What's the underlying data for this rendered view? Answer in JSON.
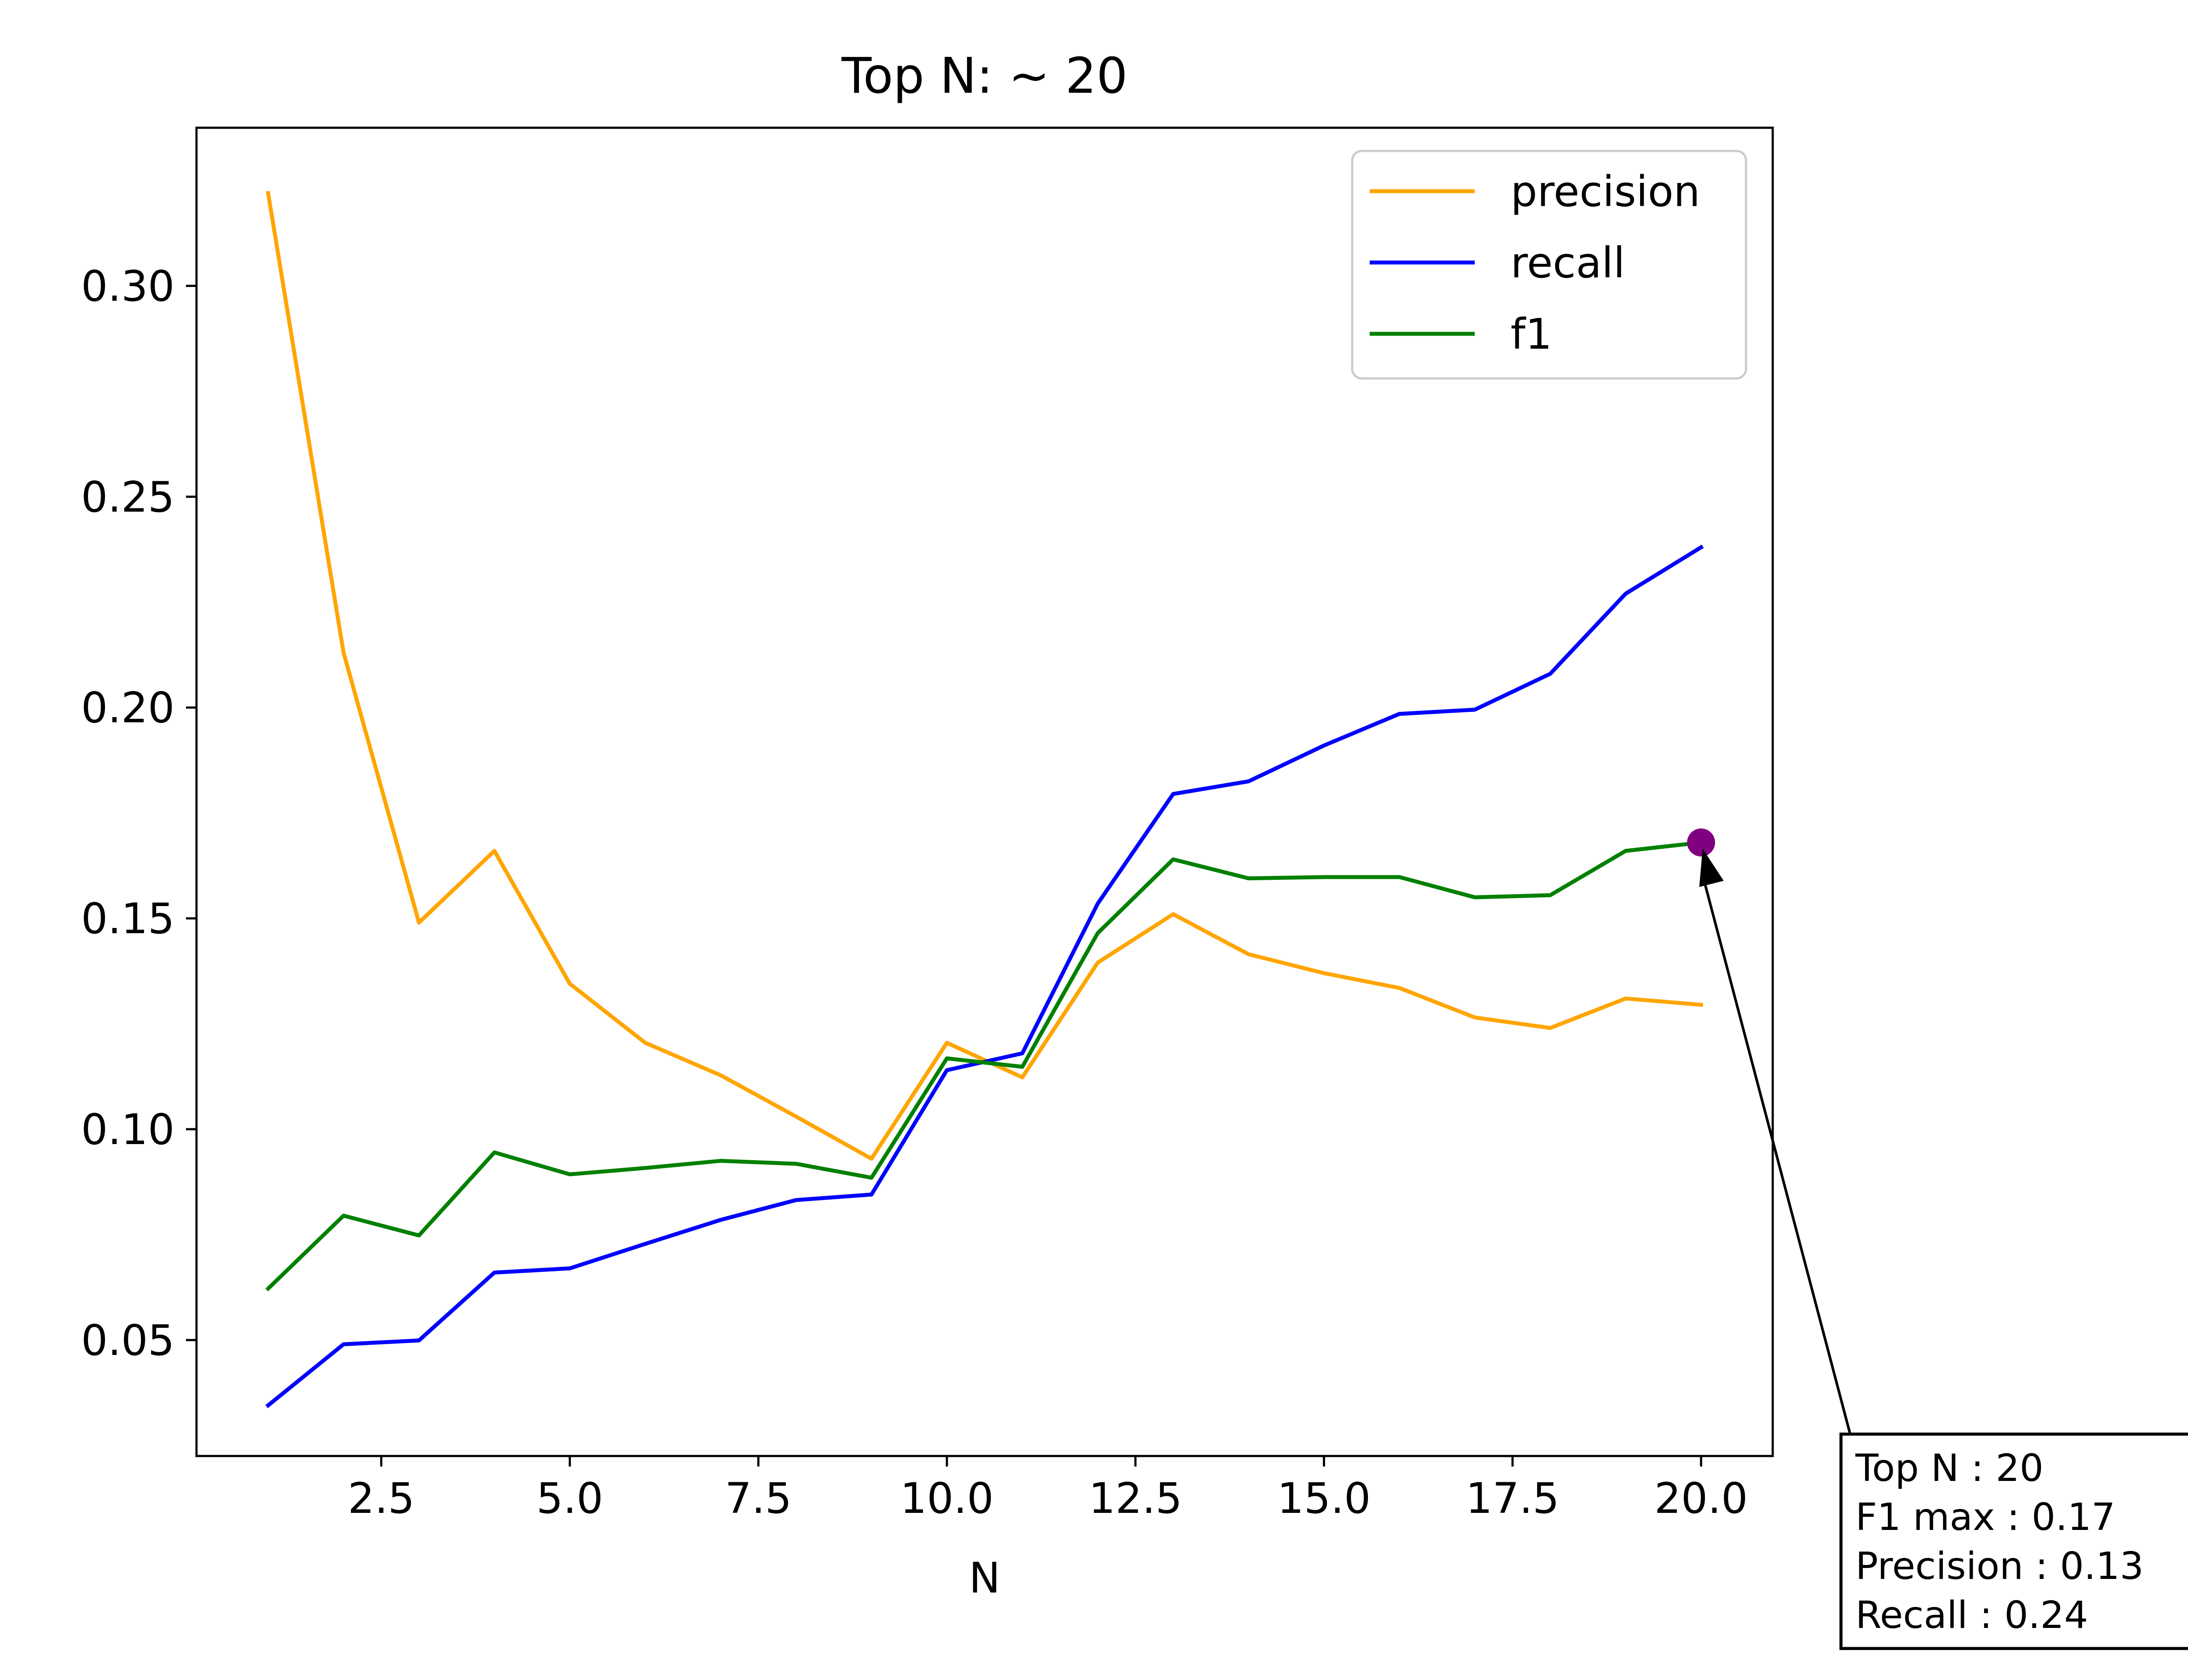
{
  "chart_data": {
    "type": "line",
    "title": "Top N: ~ 20",
    "xlabel": "N",
    "ylabel": "",
    "xlim": [
      0.05,
      20.95
    ],
    "ylim": [
      0.0225,
      0.3375
    ],
    "xticks": [
      2.5,
      5.0,
      7.5,
      10.0,
      12.5,
      15.0,
      17.5,
      20.0
    ],
    "xtick_labels": [
      "2.5",
      "5.0",
      "7.5",
      "10.0",
      "12.5",
      "15.0",
      "17.5",
      "20.0"
    ],
    "yticks": [
      0.05,
      0.1,
      0.15,
      0.2,
      0.25,
      0.3
    ],
    "ytick_labels": [
      "0.05",
      "0.10",
      "0.15",
      "0.20",
      "0.25",
      "0.30"
    ],
    "grid": false,
    "legend_position": "upper-right",
    "x": [
      1,
      2,
      3,
      4,
      5,
      6,
      7,
      8,
      9,
      10,
      11,
      12,
      13,
      14,
      15,
      16,
      17,
      18,
      19,
      20
    ],
    "series": [
      {
        "name": "precision",
        "color": "#FFA500",
        "values": [
          0.322,
          0.213,
          0.149,
          0.166,
          0.1345,
          0.1205,
          0.1128,
          0.103,
          0.093,
          0.1205,
          0.1123,
          0.1395,
          0.151,
          0.1415,
          0.137,
          0.1335,
          0.1265,
          0.124,
          0.131,
          0.1295
        ]
      },
      {
        "name": "recall",
        "color": "#0000FF",
        "values": [
          0.0345,
          0.049,
          0.0499,
          0.066,
          0.067,
          0.0728,
          0.0785,
          0.0832,
          0.0845,
          0.114,
          0.118,
          0.1535,
          0.1795,
          0.1825,
          0.191,
          0.1985,
          0.1995,
          0.208,
          0.227,
          0.238
        ]
      },
      {
        "name": "f1",
        "color": "#008000",
        "values": [
          0.0622,
          0.0795,
          0.0748,
          0.0945,
          0.0893,
          0.0908,
          0.0925,
          0.0918,
          0.0885,
          0.1168,
          0.1148,
          0.1465,
          0.164,
          0.1595,
          0.1598,
          0.1598,
          0.155,
          0.1555,
          0.166,
          0.168
        ]
      }
    ],
    "highlight_point": {
      "x": 20,
      "y": 0.168,
      "color": "#800080"
    },
    "annotation": {
      "lines": [
        "Top N : 20",
        "F1 max : 0.17",
        "Precision : 0.13",
        "Recall : 0.24"
      ]
    }
  }
}
